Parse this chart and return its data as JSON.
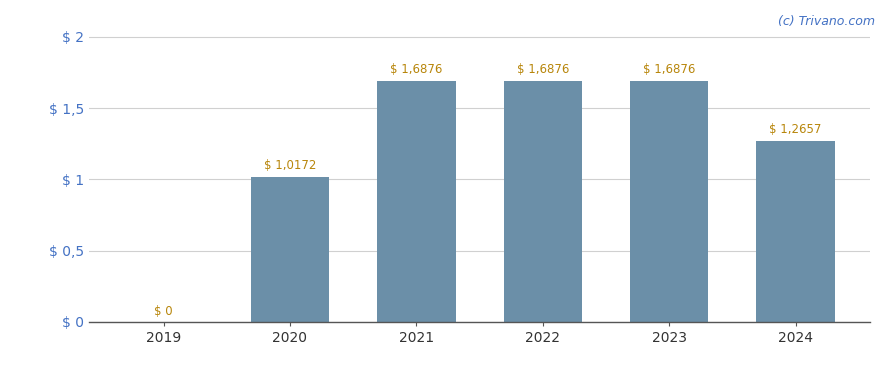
{
  "categories": [
    "2019",
    "2020",
    "2021",
    "2022",
    "2023",
    "2024"
  ],
  "values": [
    0,
    1.0172,
    1.6876,
    1.6876,
    1.6876,
    1.2657
  ],
  "labels": [
    "$ 0",
    "$ 1,0172",
    "$ 1,6876",
    "$ 1,6876",
    "$ 1,6876",
    "$ 1,2657"
  ],
  "bar_color": "#6b8fa8",
  "ylim": [
    0,
    2.05
  ],
  "yticks": [
    0,
    0.5,
    1.0,
    1.5,
    2.0
  ],
  "ytick_labels": [
    "$ 0",
    "$ 0,5",
    "$ 1",
    "$ 1,5",
    "$ 2"
  ],
  "watermark": "(c) Trivano.com",
  "watermark_color": "#4472c4",
  "label_color": "#b8860b",
  "ytick_color": "#4472c4",
  "background_color": "#ffffff",
  "grid_color": "#d0d0d0",
  "bar_width": 0.62
}
